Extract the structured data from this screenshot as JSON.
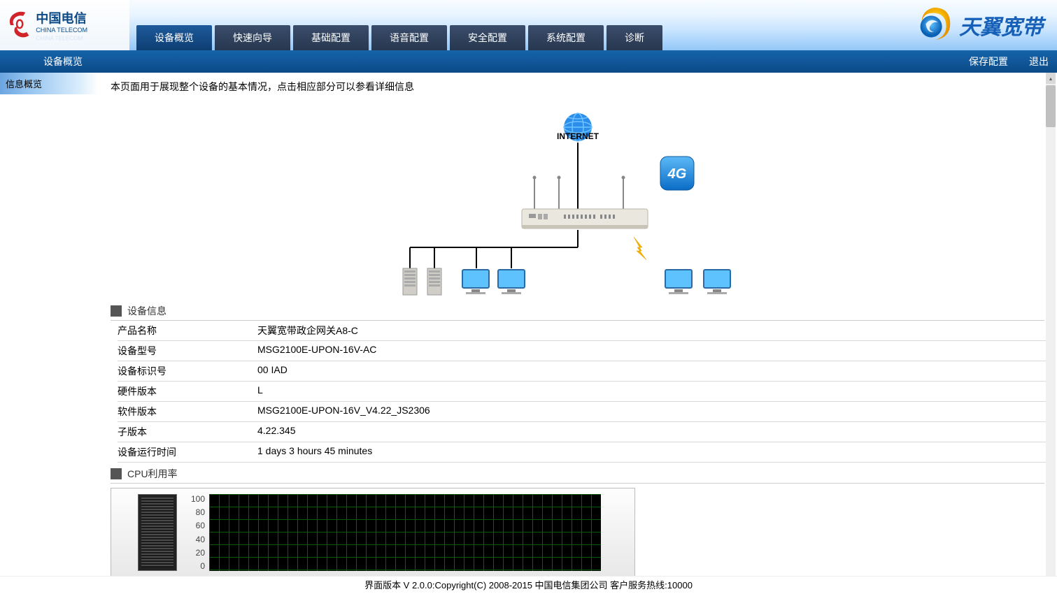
{
  "header": {
    "logo_main": "中国电信",
    "logo_sub": "CHINA TELECOM",
    "nav_tabs": [
      "设备概览",
      "快速向导",
      "基础配置",
      "语音配置",
      "安全配置",
      "系统配置",
      "诊断"
    ],
    "active_tab_index": 0,
    "right_brand": "天翼宽带"
  },
  "sub_header": {
    "left": "设备概览",
    "save": "保存配置",
    "logout": "退出"
  },
  "sidebar": {
    "items": [
      "信息概览"
    ]
  },
  "page_desc": "本页面用于展现整个设备的基本情况，点击相应部分可以参看详细信息",
  "diagram": {
    "internet_label": "INTERNET",
    "badge_4g": "4G",
    "colors": {
      "globe": "#2a8eea",
      "badge_bg1": "#3ba7f5",
      "badge_bg2": "#0b6cc6",
      "router_body": "#e9e7de",
      "router_shadow": "#c8c4b7",
      "antenna": "#888888",
      "line": "#000000",
      "monitor_screen": "#5ec2ff",
      "monitor_frame": "#2a6aa5",
      "tower": "#d0cec6",
      "lightning": "#f5b400"
    }
  },
  "sections": {
    "device_info_title": "设备信息",
    "cpu_title": "CPU利用率"
  },
  "device_info": {
    "rows": [
      {
        "label": "产品名称",
        "value": "天翼宽带政企网关A8-C"
      },
      {
        "label": "设备型号",
        "value": "MSG2100E-UPON-16V-AC"
      },
      {
        "label": "设备标识号",
        "value": "00                                               IAD"
      },
      {
        "label": "硬件版本",
        "value": "L"
      },
      {
        "label": "软件版本",
        "value": "MSG2100E-UPON-16V_V4.22_JS2306"
      },
      {
        "label": "子版本",
        "value": "4.22.345"
      },
      {
        "label": "设备运行时间",
        "value": "1 days 3 hours 45 minutes"
      }
    ]
  },
  "cpu_chart": {
    "y_ticks": [
      "100",
      "80",
      "60",
      "40",
      "20",
      "0"
    ],
    "grid_color": "#0b5c0b",
    "bg_color": "#000000"
  },
  "footer": "界面版本 V 2.0.0:Copyright(C) 2008-2015 中国电信集团公司 客户服务热线:10000"
}
